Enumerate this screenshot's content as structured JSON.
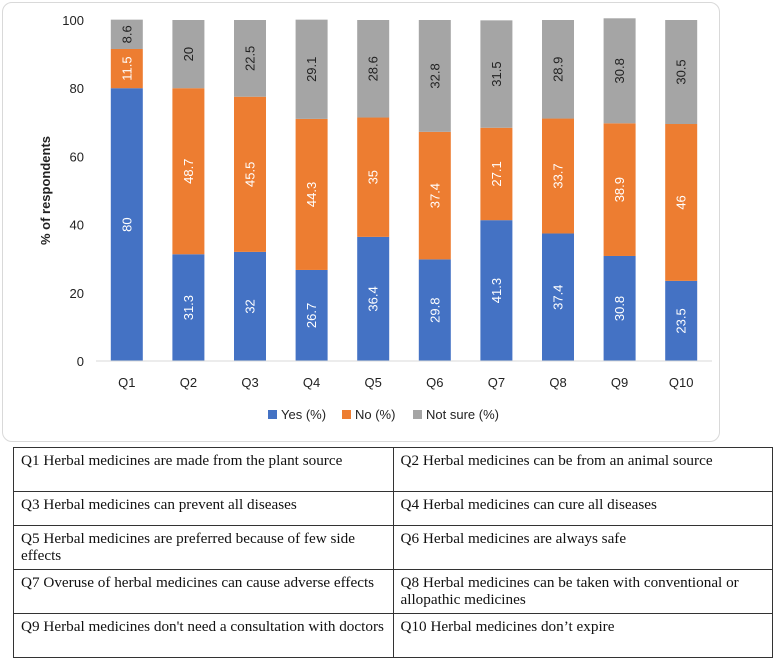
{
  "chart_data": {
    "type": "bar",
    "stacked": true,
    "categories": [
      "Q1",
      "Q2",
      "Q3",
      "Q4",
      "Q5",
      "Q6",
      "Q7",
      "Q8",
      "Q9",
      "Q10"
    ],
    "series": [
      {
        "name": "Yes (%)",
        "color": "#4472c4",
        "values": [
          80,
          31.3,
          32,
          26.7,
          36.4,
          29.8,
          41.3,
          37.4,
          30.8,
          23.5
        ]
      },
      {
        "name": "No (%)",
        "color": "#ed7d31",
        "values": [
          11.5,
          48.7,
          45.5,
          44.3,
          35,
          37.4,
          27.1,
          33.7,
          38.9,
          46
        ]
      },
      {
        "name": "Not sure (%)",
        "color": "#a5a5a5",
        "values": [
          8.6,
          20,
          22.5,
          29.1,
          28.6,
          32.8,
          31.5,
          28.9,
          30.8,
          30.5
        ]
      }
    ],
    "ylabel": "% of respondents",
    "xlabel": "",
    "ylim": [
      0,
      100
    ],
    "yticks": [
      0,
      20,
      40,
      60,
      80,
      100
    ],
    "legend_position": "bottom",
    "label_colors": [
      "#ffffff",
      "#ffffff",
      "#222222"
    ]
  },
  "question_table": {
    "rows": [
      [
        "Q1 Herbal medicines are made from the plant source",
        "Q2 Herbal medicines can be from an animal source"
      ],
      [
        "Q3 Herbal medicines can prevent all diseases",
        "Q4 Herbal medicines can cure all diseases"
      ],
      [
        "Q5 Herbal medicines are preferred because of few side effects",
        "Q6 Herbal medicines are always safe"
      ],
      [
        "Q7 Overuse of herbal medicines can cause adverse effects",
        "Q8 Herbal medicines can be taken with conventional or allopathic medicines"
      ],
      [
        "Q9 Herbal medicines don't need a consultation with doctors",
        "Q10 Herbal medicines don’t expire"
      ]
    ]
  }
}
